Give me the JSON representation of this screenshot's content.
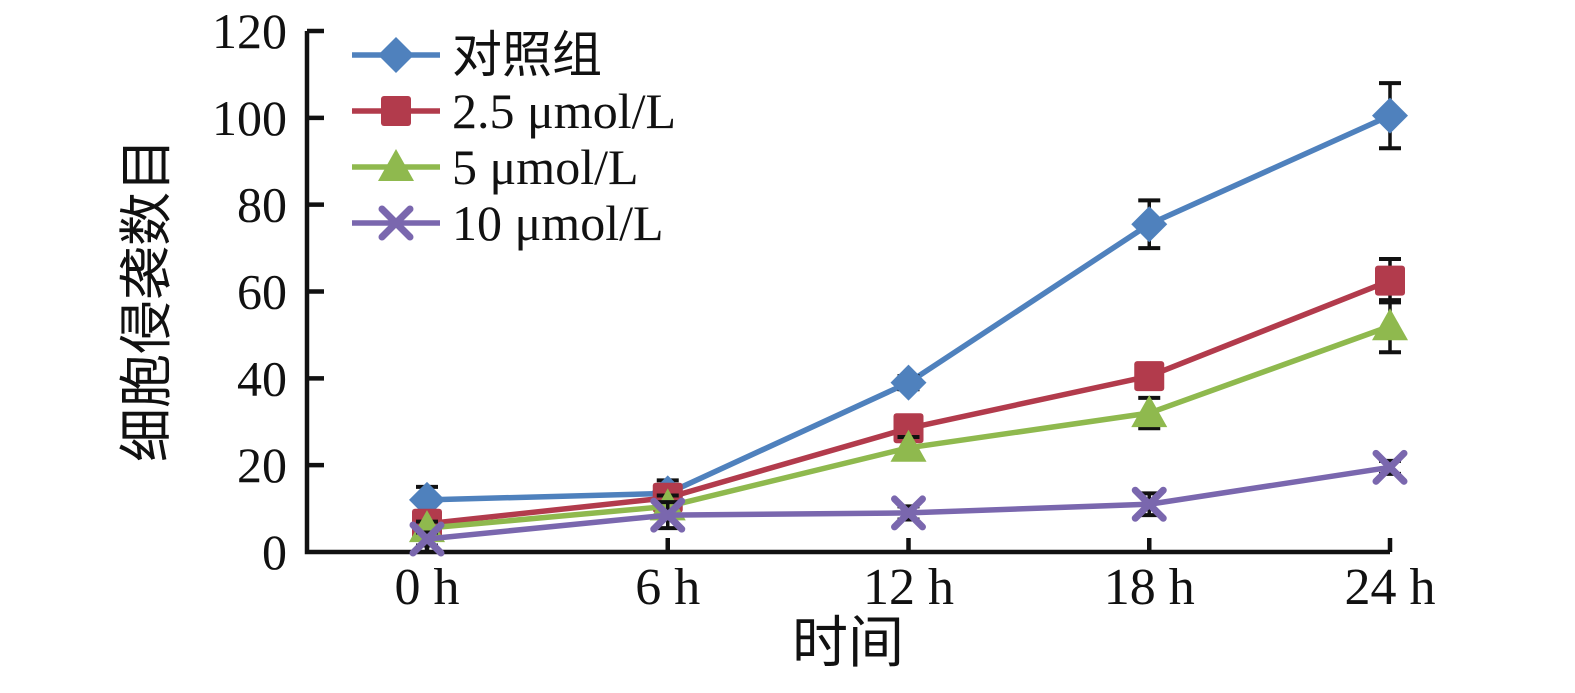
{
  "chart_data": {
    "type": "line",
    "title": "",
    "xlabel": "时间",
    "ylabel": "细胞侵袭数目",
    "categories": [
      "0 h",
      "6 h",
      "12 h",
      "18 h",
      "24 h"
    ],
    "ylim": [
      0,
      120
    ],
    "yticks": [
      0,
      20,
      40,
      60,
      80,
      100,
      120
    ],
    "grid": false,
    "legend_position": "top-left-inside",
    "error_bars": true,
    "series": [
      {
        "name": "对照组",
        "marker": "diamond",
        "color": "#4F81BD",
        "values": [
          12,
          13.5,
          39,
          75.5,
          100.5
        ],
        "errors": [
          3,
          3,
          1.5,
          5.5,
          7.5
        ]
      },
      {
        "name": "2.5 μmol/L",
        "marker": "square",
        "color": "#B23B4C",
        "values": [
          6.5,
          12.5,
          28.5,
          40.5,
          62.5
        ],
        "errors": [
          1.5,
          2.5,
          2.5,
          2,
          5
        ]
      },
      {
        "name": "5 μmol/L",
        "marker": "triangle",
        "color": "#8FB94E",
        "values": [
          5.5,
          10.5,
          24,
          32,
          52
        ],
        "errors": [
          1.5,
          2.5,
          2.5,
          3.5,
          6
        ]
      },
      {
        "name": "10 μmol/L",
        "marker": "x",
        "color": "#7A67AE",
        "values": [
          3,
          8.5,
          9,
          11,
          19.5
        ],
        "errors": [
          1.5,
          3,
          1.5,
          2.5,
          1.5
        ]
      }
    ],
    "colors": {
      "axis": "#111111",
      "error_bar": "#111111",
      "text": "#111111",
      "background": "#ffffff"
    }
  }
}
